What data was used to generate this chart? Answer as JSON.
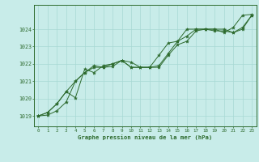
{
  "xlabel": "Graphe pression niveau de la mer (hPa)",
  "background_color": "#c8ece9",
  "line_color": "#2d6a2d",
  "marker_color": "#2d6a2d",
  "grid_color": "#a8d8d4",
  "text_color": "#2d6a2d",
  "spine_color": "#2d6a2d",
  "xlim": [
    -0.5,
    23.5
  ],
  "ylim": [
    1018.4,
    1025.4
  ],
  "yticks": [
    1019,
    1020,
    1021,
    1022,
    1023,
    1024
  ],
  "xticks": [
    0,
    1,
    2,
    3,
    4,
    5,
    6,
    7,
    8,
    9,
    10,
    11,
    12,
    13,
    14,
    15,
    16,
    17,
    18,
    19,
    20,
    21,
    22,
    23
  ],
  "series": [
    [
      1019.0,
      1019.05,
      1019.3,
      1019.8,
      1021.0,
      1021.5,
      1021.9,
      1021.8,
      1021.85,
      1022.2,
      1022.1,
      1021.8,
      1021.8,
      1021.8,
      1022.5,
      1023.1,
      1023.3,
      1023.9,
      1024.0,
      1024.0,
      1024.0,
      1023.8,
      1024.1,
      1024.8
    ],
    [
      1019.0,
      1019.2,
      1019.7,
      1020.4,
      1020.05,
      1021.7,
      1021.5,
      1021.9,
      1022.0,
      1022.2,
      1021.8,
      1021.8,
      1021.8,
      1022.5,
      1023.2,
      1023.3,
      1024.0,
      1024.0,
      1024.0,
      1024.0,
      1023.8,
      1024.1,
      1024.8,
      1024.85
    ],
    [
      1019.0,
      1019.2,
      1019.7,
      1020.4,
      1021.0,
      1021.5,
      1021.8,
      1021.8,
      1022.0,
      1022.2,
      1021.8,
      1021.8,
      1021.8,
      1021.9,
      1022.6,
      1023.3,
      1023.6,
      1024.0,
      1024.0,
      1023.9,
      1023.9,
      1023.8,
      1024.0,
      1024.8
    ]
  ]
}
